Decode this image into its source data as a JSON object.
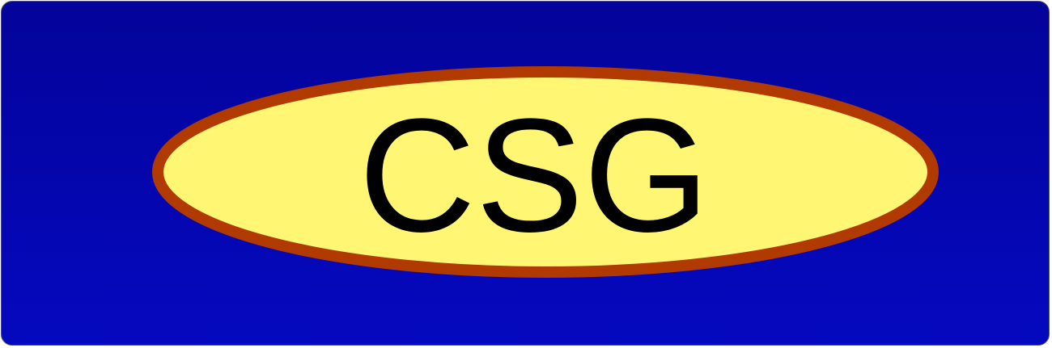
{
  "banner": {
    "text": "CSG",
    "colors": {
      "background_top": "#04039a",
      "background_bottom": "#0509bf",
      "ellipse_fill": "#fff773",
      "ellipse_stroke": "#b03a00",
      "text": "#000000"
    }
  }
}
